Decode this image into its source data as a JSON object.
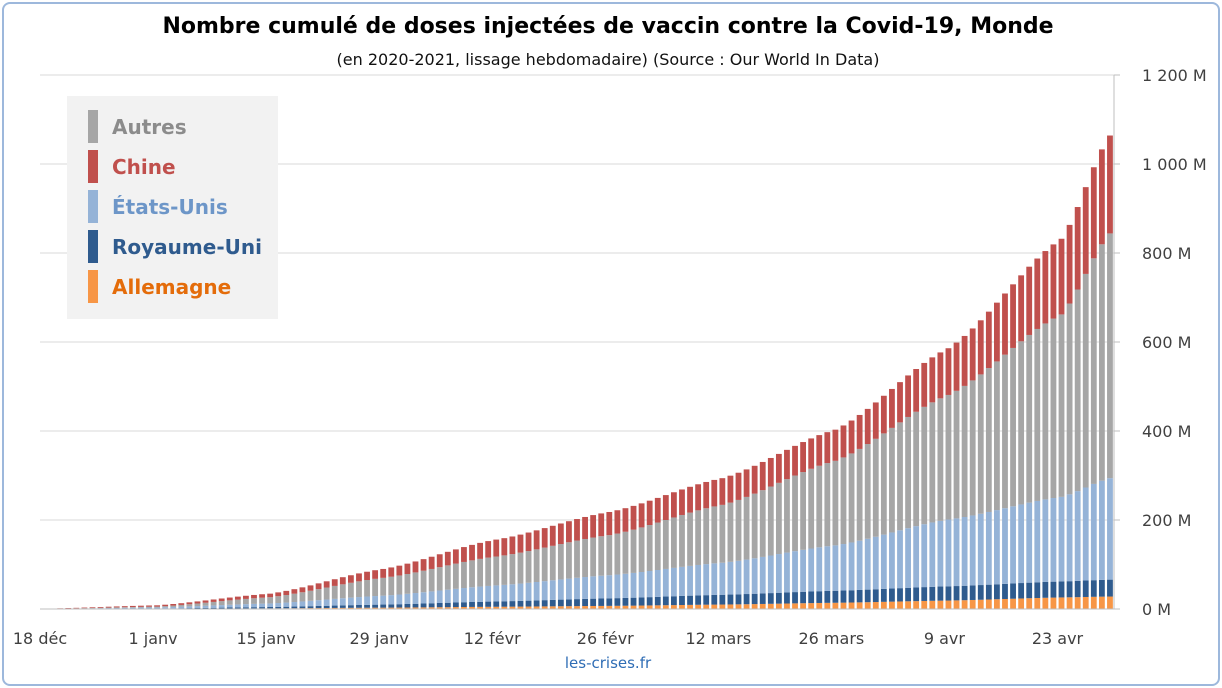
{
  "title": "Nombre cumulé de doses injectées de vaccin contre la Covid-19, Monde",
  "subtitle": "(en 2020-2021, lissage hebdomadaire) (Source : Our World In Data)",
  "footer": "les-crises.fr",
  "chart_data": {
    "type": "bar",
    "stacked": true,
    "x_unit": "days since 18 déc 2020",
    "x_tick_labels": [
      "18 déc",
      "1 janv",
      "15 janv",
      "29 janv",
      "12 févr",
      "26 févr",
      "12 mars",
      "26 mars",
      "9 avr",
      "23 avr"
    ],
    "x_range": [
      "2020-12-18",
      "2021-04-29"
    ],
    "y_tick_labels": [
      "0 M",
      "200 M",
      "400 M",
      "600 M",
      "800 M",
      "1 000 M",
      "1 200 M"
    ],
    "ylim": [
      0,
      1200
    ],
    "y_unit": "millions de doses",
    "y_axis_side": "right",
    "grid": true,
    "legend_position": "top-left",
    "colors": {
      "Allemagne": "#f79646",
      "Royaume-Uni": "#2f5b8e",
      "États-Unis": "#95b3d7",
      "Chine": "#c0504d",
      "Autres": "#a6a6a6"
    },
    "legend_text_colors": {
      "Autres": "#8c8c8c",
      "Chine": "#c0504d",
      "États-Unis": "#6d96c8",
      "Royaume-Uni": "#2f5b8e",
      "Allemagne": "#e46c0a"
    },
    "legend": [
      "Autres",
      "Chine",
      "États-Unis",
      "Royaume-Uni",
      "Allemagne"
    ],
    "series": [
      {
        "name": "Allemagne",
        "anchors": [
          [
            0,
            0
          ],
          [
            14,
            0.3
          ],
          [
            28,
            1.5
          ],
          [
            42,
            3
          ],
          [
            56,
            5
          ],
          [
            70,
            7
          ],
          [
            84,
            10
          ],
          [
            98,
            14
          ],
          [
            112,
            19
          ],
          [
            126,
            26
          ],
          [
            132,
            28
          ]
        ]
      },
      {
        "name": "Royaume-Uni",
        "anchors": [
          [
            0,
            0
          ],
          [
            14,
            0.8
          ],
          [
            28,
            3
          ],
          [
            42,
            7
          ],
          [
            56,
            12
          ],
          [
            70,
            17
          ],
          [
            84,
            22
          ],
          [
            98,
            27
          ],
          [
            112,
            32
          ],
          [
            126,
            36
          ],
          [
            132,
            38
          ]
        ]
      },
      {
        "name": "États-Unis",
        "anchors": [
          [
            0,
            0
          ],
          [
            14,
            2.5
          ],
          [
            28,
            8
          ],
          [
            42,
            20
          ],
          [
            56,
            36
          ],
          [
            70,
            52
          ],
          [
            84,
            72
          ],
          [
            98,
            102
          ],
          [
            112,
            150
          ],
          [
            126,
            190
          ],
          [
            132,
            228
          ]
        ]
      },
      {
        "name": "Autres",
        "anchors": [
          [
            0,
            0.2
          ],
          [
            14,
            1.7
          ],
          [
            28,
            14
          ],
          [
            42,
            40
          ],
          [
            56,
            65
          ],
          [
            70,
            90
          ],
          [
            84,
            130
          ],
          [
            98,
            190
          ],
          [
            112,
            280
          ],
          [
            126,
            410
          ],
          [
            132,
            550
          ]
        ]
      },
      {
        "name": "Chine",
        "anchors": [
          [
            0,
            0.5
          ],
          [
            14,
            3
          ],
          [
            28,
            8
          ],
          [
            42,
            20
          ],
          [
            56,
            38
          ],
          [
            70,
            52
          ],
          [
            84,
            60
          ],
          [
            98,
            70
          ],
          [
            112,
            105
          ],
          [
            126,
            170
          ],
          [
            132,
            220
          ]
        ]
      }
    ]
  }
}
